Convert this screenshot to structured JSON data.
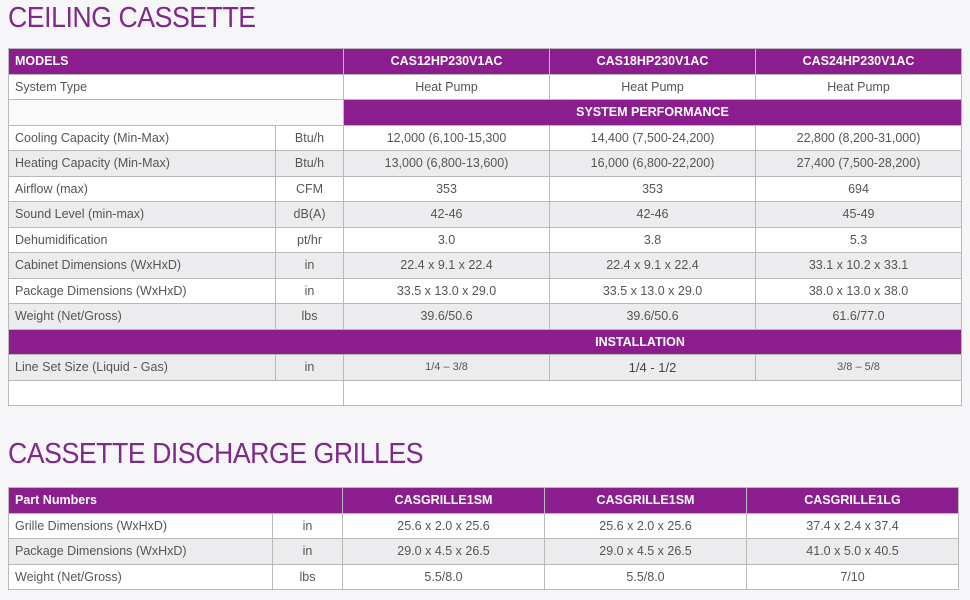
{
  "section1": {
    "title": "CEILING CASSETTE",
    "header": {
      "label": "MODELS",
      "models": [
        "CAS12HP230V1AC",
        "CAS18HP230V1AC",
        "CAS24HP230V1AC"
      ]
    },
    "system_type": {
      "label": "System Type",
      "values": [
        "Heat Pump",
        "Heat Pump",
        "Heat Pump"
      ]
    },
    "performance_band": "SYSTEM PERFORMANCE",
    "rows": [
      {
        "label": "Cooling Capacity (Min-Max)",
        "unit": "Btu/h",
        "values": [
          "12,000 (6,100-15,300",
          "14,400 (7,500-24,200)",
          "22,800 (8,200-31,000)"
        ]
      },
      {
        "label": "Heating Capacity (Min-Max)",
        "unit": "Btu/h",
        "values": [
          "13,000 (6,800-13,600)",
          "16,000 (6,800-22,200)",
          "27,400 (7,500-28,200)"
        ]
      },
      {
        "label": "Airflow (max)",
        "unit": "CFM",
        "values": [
          "353",
          "353",
          "694"
        ]
      },
      {
        "label": "Sound Level (min-max)",
        "unit": "dB(A)",
        "values": [
          "42-46",
          "42-46",
          "45-49"
        ]
      },
      {
        "label": "Dehumidification",
        "unit": "pt/hr",
        "values": [
          "3.0",
          "3.8",
          "5.3"
        ]
      },
      {
        "label": "Cabinet Dimensions (WxHxD)",
        "unit": "in",
        "values": [
          "22.4 x 9.1 x 22.4",
          "22.4 x 9.1 x 22.4",
          "33.1 x 10.2 x 33.1"
        ]
      },
      {
        "label": "Package Dimensions (WxHxD)",
        "unit": "in",
        "values": [
          "33.5 x 13.0 x 29.0",
          "33.5 x 13.0 x 29.0",
          "38.0 x 13.0 x 38.0"
        ]
      },
      {
        "label": "Weight (Net/Gross)",
        "unit": "lbs",
        "values": [
          "39.6/50.6",
          "39.6/50.6",
          "61.6/77.0"
        ]
      }
    ],
    "installation_band": "INSTALLATION",
    "line_set": {
      "label": "Line Set Size (Liquid - Gas)",
      "unit": "in",
      "values": [
        "1/4 – 3/8",
        "1/4 - 1/2",
        "3/8 – 5/8"
      ]
    }
  },
  "section2": {
    "title": "CASSETTE DISCHARGE GRILLES",
    "header": {
      "label": "Part Numbers",
      "parts": [
        "CASGRILLE1SM",
        "CASGRILLE1SM",
        "CASGRILLE1LG"
      ]
    },
    "rows": [
      {
        "label": "Grille Dimensions (WxHxD)",
        "unit": "in",
        "values": [
          "25.6 x 2.0 x 25.6",
          "25.6 x 2.0 x 25.6",
          "37.4 x 2.4 x 37.4"
        ]
      },
      {
        "label": "Package Dimensions (WxHxD)",
        "unit": "in",
        "values": [
          "29.0 x 4.5 x 26.5",
          "29.0 x 4.5 x 26.5",
          "41.0 x 5.0 x 40.5"
        ]
      },
      {
        "label": "Weight (Net/Gross)",
        "unit": "lbs",
        "values": [
          "5.5/8.0",
          "5.5/8.0",
          "7/10"
        ]
      }
    ]
  },
  "colors": {
    "accent": "#8c1d8f",
    "title": "#7e2a8a",
    "row_alt": "#ececee"
  }
}
